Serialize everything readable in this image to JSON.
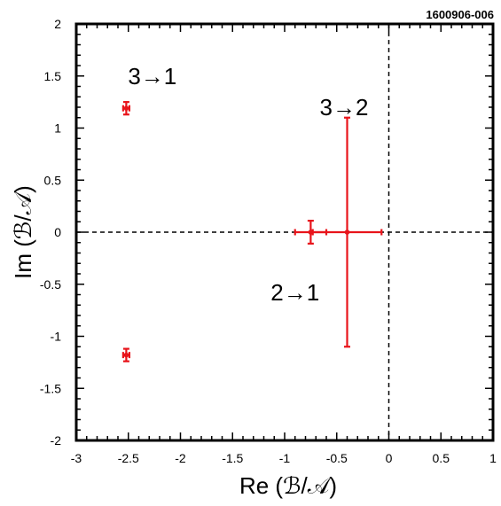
{
  "figure_id": "1600906-006",
  "chart_data": {
    "type": "scatter",
    "title": "",
    "xlabel": "Re (ℬ/𝒜)",
    "ylabel": "Im (ℬ/𝒜)",
    "xlim": [
      -3,
      1
    ],
    "ylim": [
      -2,
      2
    ],
    "x_ticks": [
      -3,
      -2.5,
      -2,
      -1.5,
      -1,
      -0.5,
      0,
      0.5,
      1
    ],
    "x_tick_labels": [
      "-3",
      "-2.5",
      "-2",
      "-1.5",
      "-1",
      "-0.5",
      "0",
      "0.5",
      "1"
    ],
    "y_ticks": [
      -2,
      -1.5,
      -1,
      -0.5,
      0,
      0.5,
      1,
      1.5,
      2
    ],
    "y_tick_labels": [
      "-2",
      "-1.5",
      "-1",
      "-0.5",
      "0",
      "0.5",
      "1",
      "1.5",
      "2"
    ],
    "grid": false,
    "reference_lines": {
      "x": 0,
      "y": 0,
      "style": "dashed"
    },
    "series": [
      {
        "color": "#e8141b",
        "points": [
          {
            "x": -2.52,
            "y": 1.19,
            "xerr": 0.03,
            "yerr": 0.06
          },
          {
            "x": -2.52,
            "y": -1.18,
            "xerr": 0.03,
            "yerr": 0.06
          },
          {
            "x": -0.75,
            "y": 0.0,
            "xerr": 0.15,
            "yerr": 0.11
          },
          {
            "x": -0.4,
            "y": 0.0,
            "xerr": 0.33,
            "yerr": 1.1
          }
        ]
      }
    ],
    "annotations": [
      {
        "text": "3→1",
        "x": -2.27,
        "y": 1.5
      },
      {
        "text": "3→2",
        "x": -0.43,
        "y": 1.2
      },
      {
        "text": "2→1",
        "x": -0.9,
        "y": -0.58
      }
    ]
  }
}
